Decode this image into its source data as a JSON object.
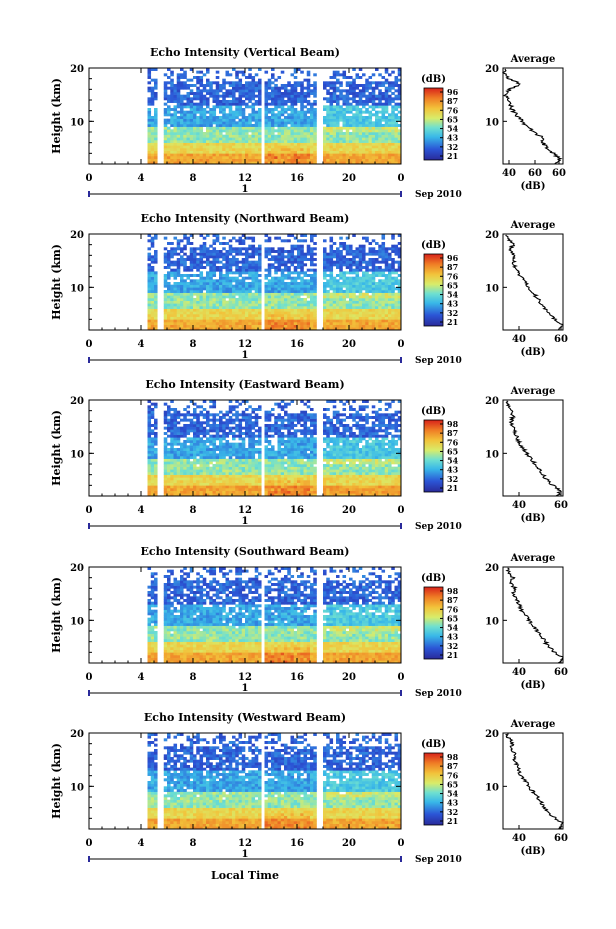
{
  "figure": {
    "xlabel_bottom": "Local Time",
    "date_label": "Sep 2010",
    "day_marker": "1",
    "cbar_unit": "(dB)",
    "avg_title": "Average",
    "avg_xlabel": "(dB)",
    "ylabel": "Height (km)",
    "colors": {
      "low": "#2b2bb0",
      "mid": "#39c3e6",
      "high": "#f2c23a",
      "peak": "#e03a1c"
    }
  },
  "chart_data": [
    {
      "type": "heatmap",
      "title": "Echo Intensity (Vertical Beam)",
      "xlabel": "",
      "ylabel": "Height (km)",
      "xlim": [
        0,
        24
      ],
      "ylim": [
        2,
        20
      ],
      "x_ticks": [
        "0",
        "4",
        "8",
        "12",
        "16",
        "20",
        "0"
      ],
      "y_ticks": [
        "10",
        "20"
      ],
      "colorbar": {
        "unit": "(dB)",
        "ticks": [
          "96",
          "87",
          "76",
          "65",
          "54",
          "43",
          "32",
          "21"
        ]
      },
      "data_gaps_hours": [
        [
          0,
          4.6
        ],
        [
          13.2,
          13.6
        ],
        [
          17.6,
          18.0
        ]
      ],
      "average_profile": {
        "title": "Average",
        "xlabel": "(dB)",
        "xlim": [
          40,
          65
        ],
        "x_ticks": [
          "40",
          "60",
          "60"
        ],
        "y_ticks": [
          "10",
          "20"
        ],
        "height_km": [
          2,
          3,
          4,
          5,
          6,
          7,
          8,
          9,
          10,
          11,
          12,
          13,
          14,
          15,
          16,
          17,
          18,
          19,
          20
        ],
        "db": [
          62,
          64,
          61,
          58,
          57,
          56,
          53,
          50,
          48,
          46,
          44,
          43,
          42,
          41,
          43,
          47,
          42,
          41,
          40
        ]
      }
    },
    {
      "type": "heatmap",
      "title": "Echo Intensity (Northward Beam)",
      "xlabel": "",
      "ylabel": "Height (km)",
      "xlim": [
        0,
        24
      ],
      "ylim": [
        2,
        20
      ],
      "x_ticks": [
        "0",
        "4",
        "8",
        "12",
        "16",
        "20",
        "0"
      ],
      "y_ticks": [
        "10",
        "20"
      ],
      "colorbar": {
        "unit": "(dB)",
        "ticks": [
          "96",
          "87",
          "76",
          "65",
          "54",
          "43",
          "32",
          "21"
        ]
      },
      "data_gaps_hours": [
        [
          0,
          4.6
        ],
        [
          13.2,
          13.6
        ],
        [
          17.6,
          18.0
        ]
      ],
      "average_profile": {
        "title": "Average",
        "xlabel": "(dB)",
        "xlim": [
          30,
          60
        ],
        "x_ticks": [
          "40",
          "60"
        ],
        "y_ticks": [
          "10",
          "20"
        ],
        "height_km": [
          2,
          3,
          4,
          5,
          6,
          7,
          8,
          9,
          10,
          11,
          12,
          13,
          14,
          15,
          16,
          17,
          18,
          19,
          20
        ],
        "db": [
          58,
          60,
          56,
          53,
          51,
          49,
          47,
          45,
          43,
          41,
          39,
          37,
          36,
          35,
          36,
          34,
          35,
          33,
          32
        ]
      }
    },
    {
      "type": "heatmap",
      "title": "Echo Intensity (Eastward Beam)",
      "xlabel": "",
      "ylabel": "Height (km)",
      "xlim": [
        0,
        24
      ],
      "ylim": [
        2,
        20
      ],
      "x_ticks": [
        "0",
        "4",
        "8",
        "12",
        "16",
        "20",
        "0"
      ],
      "y_ticks": [
        "10",
        "20"
      ],
      "colorbar": {
        "unit": "(dB)",
        "ticks": [
          "98",
          "87",
          "76",
          "65",
          "54",
          "43",
          "32",
          "21"
        ]
      },
      "data_gaps_hours": [
        [
          0,
          4.6
        ],
        [
          13.2,
          13.6
        ],
        [
          17.6,
          18.0
        ]
      ],
      "average_profile": {
        "title": "Average",
        "xlabel": "(dB)",
        "xlim": [
          30,
          60
        ],
        "x_ticks": [
          "40",
          "60"
        ],
        "y_ticks": [
          "10",
          "20"
        ],
        "height_km": [
          2,
          3,
          4,
          5,
          6,
          7,
          8,
          9,
          10,
          11,
          12,
          13,
          14,
          15,
          16,
          17,
          18,
          19,
          20
        ],
        "db": [
          57,
          59,
          55,
          52,
          50,
          48,
          46,
          44,
          42,
          40,
          38,
          37,
          36,
          35,
          34,
          35,
          34,
          33,
          32
        ]
      }
    },
    {
      "type": "heatmap",
      "title": "Echo Intensity (Southward Beam)",
      "xlabel": "",
      "ylabel": "Height (km)",
      "xlim": [
        0,
        24
      ],
      "ylim": [
        2,
        20
      ],
      "x_ticks": [
        "0",
        "4",
        "8",
        "12",
        "16",
        "20",
        "0"
      ],
      "y_ticks": [
        "10",
        "20"
      ],
      "colorbar": {
        "unit": "(dB)",
        "ticks": [
          "98",
          "87",
          "76",
          "65",
          "54",
          "43",
          "32",
          "21"
        ]
      },
      "data_gaps_hours": [
        [
          0,
          4.6
        ],
        [
          13.2,
          13.6
        ],
        [
          17.6,
          18.0
        ]
      ],
      "average_profile": {
        "title": "Average",
        "xlabel": "(dB)",
        "xlim": [
          30,
          60
        ],
        "x_ticks": [
          "40",
          "60"
        ],
        "y_ticks": [
          "10",
          "20"
        ],
        "height_km": [
          2,
          3,
          4,
          5,
          6,
          7,
          8,
          9,
          10,
          11,
          12,
          13,
          14,
          15,
          16,
          17,
          18,
          19,
          20
        ],
        "db": [
          58,
          60,
          56,
          53,
          51,
          49,
          47,
          45,
          43,
          41,
          39,
          38,
          37,
          35,
          36,
          34,
          35,
          33,
          32
        ]
      }
    },
    {
      "type": "heatmap",
      "title": "Echo Intensity (Westward Beam)",
      "xlabel": "Local Time",
      "ylabel": "Height (km)",
      "xlim": [
        0,
        24
      ],
      "ylim": [
        2,
        20
      ],
      "x_ticks": [
        "0",
        "4",
        "8",
        "12",
        "16",
        "20",
        "0"
      ],
      "y_ticks": [
        "10",
        "20"
      ],
      "colorbar": {
        "unit": "(dB)",
        "ticks": [
          "98",
          "87",
          "76",
          "65",
          "54",
          "43",
          "32",
          "21"
        ]
      },
      "data_gaps_hours": [
        [
          0,
          4.6
        ],
        [
          13.2,
          13.6
        ],
        [
          17.6,
          18.0
        ]
      ],
      "average_profile": {
        "title": "Average",
        "xlabel": "(dB)",
        "xlim": [
          30,
          60
        ],
        "x_ticks": [
          "40",
          "60"
        ],
        "y_ticks": [
          "10",
          "20"
        ],
        "height_km": [
          2,
          3,
          4,
          5,
          6,
          7,
          8,
          9,
          10,
          11,
          12,
          13,
          14,
          15,
          16,
          17,
          18,
          19,
          20
        ],
        "db": [
          58,
          60,
          56,
          53,
          51,
          49,
          47,
          45,
          43,
          41,
          39,
          38,
          37,
          35,
          36,
          34,
          35,
          33,
          32
        ]
      }
    }
  ]
}
